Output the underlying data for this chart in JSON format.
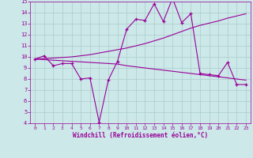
{
  "xlabel": "Windchill (Refroidissement éolien,°C)",
  "bg_color": "#cce8e8",
  "grid_color": "#aacccc",
  "line_color": "#990099",
  "x_values": [
    0,
    1,
    2,
    3,
    4,
    5,
    6,
    7,
    8,
    9,
    10,
    11,
    12,
    13,
    14,
    15,
    16,
    17,
    18,
    19,
    20,
    21,
    22,
    23
  ],
  "line1_y": [
    9.8,
    10.1,
    9.2,
    9.4,
    9.4,
    8.0,
    8.1,
    4.1,
    7.9,
    9.6,
    12.5,
    13.4,
    13.3,
    14.8,
    13.2,
    15.3,
    13.1,
    13.9,
    8.5,
    8.4,
    8.3,
    9.5,
    7.5,
    7.5
  ],
  "line2_y": [
    9.8,
    9.85,
    9.9,
    9.95,
    10.0,
    10.1,
    10.2,
    10.35,
    10.5,
    10.65,
    10.8,
    11.0,
    11.2,
    11.45,
    11.7,
    12.0,
    12.3,
    12.6,
    12.85,
    13.05,
    13.25,
    13.5,
    13.7,
    13.9
  ],
  "line3_y": [
    9.8,
    9.75,
    9.7,
    9.65,
    9.6,
    9.55,
    9.5,
    9.45,
    9.4,
    9.35,
    9.2,
    9.1,
    9.0,
    8.9,
    8.8,
    8.7,
    8.6,
    8.5,
    8.4,
    8.3,
    8.2,
    8.1,
    8.0,
    7.9
  ],
  "ylim": [
    4,
    15
  ],
  "xlim": [
    -0.5,
    23.5
  ],
  "yticks": [
    4,
    5,
    6,
    7,
    8,
    9,
    10,
    11,
    12,
    13,
    14,
    15
  ],
  "xticks": [
    0,
    1,
    2,
    3,
    4,
    5,
    6,
    7,
    8,
    9,
    10,
    11,
    12,
    13,
    14,
    15,
    16,
    17,
    18,
    19,
    20,
    21,
    22,
    23
  ]
}
